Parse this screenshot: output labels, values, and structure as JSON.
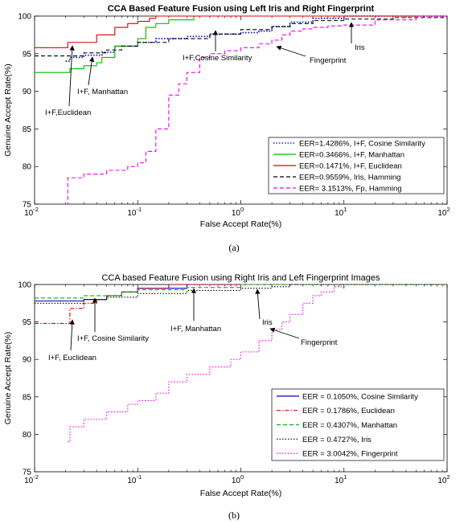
{
  "chart_data": [
    {
      "type": "line",
      "title": "CCA Based Feature Fusion using Left Iris and Right Fingerprint",
      "xlabel": "False Accept Rate(%)",
      "ylabel": "Genuine Accept Rate(%)",
      "xscale": "log",
      "xlim": [
        0.01,
        100
      ],
      "ylim": [
        75,
        100
      ],
      "xticks": [
        {
          "v": 0.01,
          "base": "10",
          "exp": "-2"
        },
        {
          "v": 0.1,
          "base": "10",
          "exp": "-1"
        },
        {
          "v": 1,
          "base": "10",
          "exp": "0"
        },
        {
          "v": 10,
          "base": "10",
          "exp": "1"
        },
        {
          "v": 100,
          "base": "10",
          "exp": "2"
        }
      ],
      "yticks": [
        "75",
        "80",
        "85",
        "90",
        "95",
        "100"
      ],
      "legend_position": "bottom-right",
      "caption": "(a)",
      "series": [
        {
          "name": "EER=1.4286%, I+F, Cosine Similarity",
          "color": "#0000cc",
          "dash": "dotted",
          "x": [
            0.02,
            0.022,
            0.03,
            0.045,
            0.06,
            0.1,
            0.15,
            0.3,
            0.5,
            1,
            1.5,
            2,
            3,
            5,
            10,
            100
          ],
          "y": [
            94,
            94.5,
            94.8,
            95.2,
            96,
            96.5,
            97,
            97.3,
            97.6,
            97.8,
            98,
            98.6,
            99.2,
            99.7,
            100,
            100
          ]
        },
        {
          "name": "EER=0.3466%, I+F, Manhattan",
          "color": "#00bb00",
          "dash": "solid",
          "x": [
            0.01,
            0.02,
            0.022,
            0.03,
            0.04,
            0.045,
            0.06,
            0.1,
            0.12,
            0.15,
            0.2,
            0.35,
            100
          ],
          "y": [
            92.5,
            92.5,
            93,
            93.4,
            93.8,
            94.5,
            96,
            97,
            98.5,
            99,
            99.5,
            100,
            100
          ]
        },
        {
          "name": "EER=0.1471%, I+F, Euclidean",
          "color": "#dd0000",
          "dash": "solid",
          "x": [
            0.01,
            0.02,
            0.021,
            0.04,
            0.06,
            0.08,
            0.1,
            0.13,
            0.15,
            100
          ],
          "y": [
            95.8,
            95.8,
            96.5,
            97.5,
            98.5,
            99,
            99.3,
            99.7,
            100,
            100
          ]
        },
        {
          "name": "EER=0.9559%, Iris, Hamming",
          "color": "#000000",
          "dash": "dashed",
          "x": [
            0.01,
            0.02,
            0.03,
            0.05,
            0.07,
            0.1,
            0.2,
            0.5,
            1,
            2,
            3,
            5,
            10,
            30,
            100
          ],
          "y": [
            94.7,
            94.7,
            95.1,
            95.5,
            96,
            96.5,
            97,
            97.6,
            98.2,
            98.6,
            99,
            99.4,
            99.6,
            99.8,
            100
          ]
        },
        {
          "name": "EER= 3.1513%, Fp, Hamming",
          "color": "#ee00ee",
          "dash": "dashed",
          "x": [
            0.02,
            0.021,
            0.03,
            0.05,
            0.08,
            0.1,
            0.12,
            0.15,
            0.2,
            0.25,
            0.3,
            0.4,
            0.5,
            0.7,
            1,
            1.5,
            2,
            2.5,
            3,
            4,
            5,
            7,
            10,
            20,
            50,
            100
          ],
          "y": [
            75,
            78.5,
            79,
            79.5,
            80,
            80.5,
            82,
            85,
            89.5,
            91,
            92.5,
            94.5,
            95,
            95.4,
            95.8,
            96.3,
            96.8,
            97.5,
            98,
            98.3,
            98.5,
            98.7,
            98.8,
            99.5,
            100,
            100
          ]
        }
      ],
      "annotations": [
        {
          "text": "I+F,Euclidean",
          "x": 0.02,
          "y": 95
        },
        {
          "text": "I+F, Manhattan",
          "x": 0.043,
          "y": 93.6
        },
        {
          "text": "I+F,Cosine Similarity",
          "x": 0.55,
          "y": 97.3
        },
        {
          "text": "Fingerprint",
          "x": 2.5,
          "y": 97.4
        },
        {
          "text": "Iris",
          "x": 13,
          "y": 99.3
        }
      ]
    },
    {
      "type": "line",
      "title": "CCA based Feature Fusion using Right Iris and Left Fingerprint Images",
      "xlabel": "False Accept Rate(%)",
      "ylabel": "Genuine Accept Rate(%)",
      "xscale": "log",
      "xlim": [
        0.01,
        100
      ],
      "ylim": [
        75,
        100
      ],
      "xticks": [
        {
          "v": 0.01,
          "base": "10",
          "exp": "-2"
        },
        {
          "v": 0.1,
          "base": "10",
          "exp": "-1"
        },
        {
          "v": 1,
          "base": "10",
          "exp": "0"
        },
        {
          "v": 10,
          "base": "10",
          "exp": "1"
        },
        {
          "v": 100,
          "base": "10",
          "exp": "2"
        }
      ],
      "yticks": [
        "75",
        "80",
        "85",
        "90",
        "95",
        "100"
      ],
      "legend_position": "bottom-right",
      "caption": "(b)",
      "series": [
        {
          "name": "EER = 0.1050%, Cosine Similarity",
          "color": "#0000cc",
          "dash": "solid",
          "x": [
            0.01,
            0.03,
            0.05,
            0.07,
            0.1,
            0.3,
            100
          ],
          "y": [
            97.8,
            98,
            98.5,
            99,
            99.5,
            100,
            100
          ]
        },
        {
          "name": "EER = 0.1786%, Euclidean",
          "color": "#dd0000",
          "dash": "dashdot",
          "x": [
            0.01,
            0.02,
            0.022,
            0.03,
            0.04,
            0.05,
            0.07,
            0.1,
            0.2,
            100
          ],
          "y": [
            94.8,
            94.8,
            96.8,
            97.5,
            98,
            98.5,
            99,
            99.5,
            100,
            100
          ]
        },
        {
          "name": "EER = 0.4307%, Manhattan",
          "color": "#00bb00",
          "dash": "dashed",
          "x": [
            0.01,
            0.03,
            0.07,
            0.1,
            0.3,
            1,
            100
          ],
          "y": [
            98.2,
            98.5,
            99,
            99.3,
            99.6,
            100,
            100
          ]
        },
        {
          "name": "EER = 0.4727%, Iris",
          "color": "#000000",
          "dash": "dotted",
          "x": [
            0.01,
            0.03,
            0.05,
            0.1,
            0.3,
            1,
            2,
            3,
            100
          ],
          "y": [
            97.5,
            98,
            98.3,
            98.8,
            99.2,
            99.5,
            99.7,
            100,
            100
          ]
        },
        {
          "name": "EER = 3.0042%, Fingerprint",
          "color": "#ee00ee",
          "dash": "dotted",
          "x": [
            0.021,
            0.022,
            0.03,
            0.05,
            0.08,
            0.1,
            0.15,
            0.2,
            0.3,
            0.5,
            0.8,
            1,
            1.5,
            2,
            2.5,
            3,
            4,
            5,
            6,
            8,
            10
          ],
          "y": [
            79,
            81,
            82,
            83,
            84,
            84.5,
            85.5,
            87,
            88,
            89,
            90,
            91,
            92.5,
            94,
            95,
            96,
            97.5,
            98.5,
            99,
            99.7,
            100
          ]
        }
      ],
      "annotations": [
        {
          "text": "I+F, Euclidean",
          "x": 0.02,
          "y": 95
        },
        {
          "text": "I+F, Cosine Similarity",
          "x": 0.04,
          "y": 98.5
        },
        {
          "text": "I+F, Manhattan",
          "x": 0.35,
          "y": 99.5
        },
        {
          "text": "Iris",
          "x": 1.4,
          "y": 99.6
        },
        {
          "text": "Fingerprint",
          "x": 1.9,
          "y": 93.5
        }
      ]
    }
  ]
}
